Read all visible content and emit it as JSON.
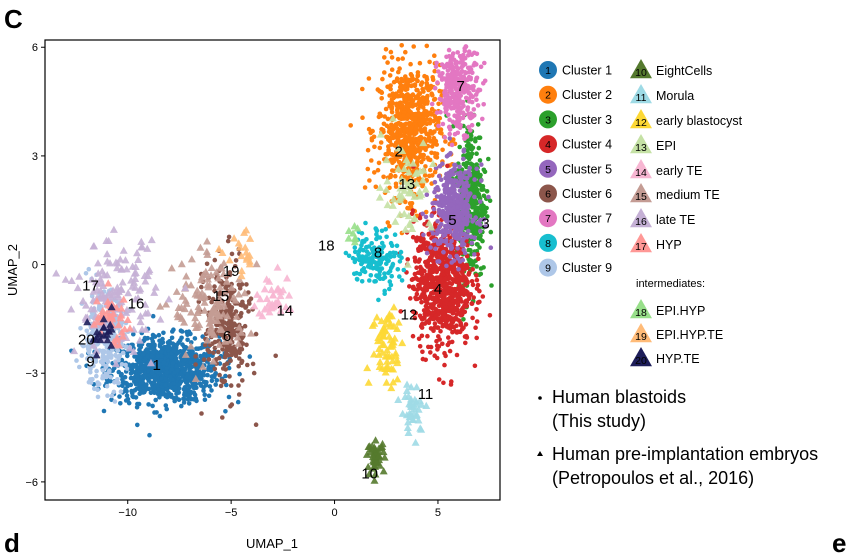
{
  "panel_label": "C",
  "panel_label_next_left": "d",
  "panel_label_next_right": "e",
  "chart_data": {
    "type": "scatter",
    "title": "",
    "xlabel": "UMAP_1",
    "ylabel": "UMAP_2",
    "xlim": [
      -14,
      8
    ],
    "ylim": [
      -6.5,
      6.2
    ],
    "xticks": [
      -10,
      -5,
      0,
      5
    ],
    "yticks": [
      -6,
      -3,
      0,
      3,
      6
    ],
    "xtick_labels": [
      "−10",
      "−5",
      "0",
      "5"
    ],
    "ytick_labels": [
      "−6",
      "−3",
      "0",
      "3",
      "6"
    ],
    "grid": false,
    "legend_position": "right",
    "clusters": [
      {
        "id": "1",
        "name": "Cluster 1",
        "color": "#1f77b4",
        "center": [
          -8.2,
          -2.9
        ],
        "spread": [
          2.6,
          0.9
        ],
        "label_at": [
          -8.6,
          -2.8
        ],
        "n": 900
      },
      {
        "id": "2",
        "name": "Cluster 2",
        "color": "#ff7f0e",
        "center": [
          3.6,
          3.7
        ],
        "spread": [
          1.5,
          1.8
        ],
        "label_at": [
          3.1,
          3.1
        ],
        "n": 700
      },
      {
        "id": "3",
        "name": "Cluster 3",
        "color": "#2ca02c",
        "center": [
          6.6,
          1.8
        ],
        "spread": [
          0.7,
          2.2
        ],
        "label_at": [
          7.3,
          1.1
        ],
        "n": 380
      },
      {
        "id": "4",
        "name": "Cluster 4",
        "color": "#d62728",
        "center": [
          5.2,
          -0.5
        ],
        "spread": [
          1.4,
          1.8
        ],
        "label_at": [
          5.0,
          -0.7
        ],
        "n": 800
      },
      {
        "id": "5",
        "name": "Cluster 5",
        "color": "#9467bd",
        "center": [
          5.8,
          1.5
        ],
        "spread": [
          1.1,
          1.2
        ],
        "label_at": [
          5.7,
          1.2
        ],
        "n": 420
      },
      {
        "id": "6",
        "name": "Cluster 6",
        "color": "#8c564b",
        "center": [
          -5.2,
          -1.7
        ],
        "spread": [
          1.1,
          1.8
        ],
        "label_at": [
          -5.2,
          -2.0
        ],
        "n": 280
      },
      {
        "id": "7",
        "name": "Cluster 7",
        "color": "#e377c2",
        "center": [
          6.0,
          4.8
        ],
        "spread": [
          1.0,
          1.1
        ],
        "label_at": [
          6.1,
          4.9
        ],
        "n": 300
      },
      {
        "id": "8",
        "name": "Cluster 8",
        "color": "#17becf",
        "center": [
          2.0,
          0.2
        ],
        "spread": [
          1.2,
          0.8
        ],
        "label_at": [
          2.1,
          0.3
        ],
        "n": 160
      },
      {
        "id": "9",
        "name": "Cluster 9",
        "color": "#aec7e8",
        "center": [
          -11.2,
          -2.1
        ],
        "spread": [
          1.1,
          1.3
        ],
        "label_at": [
          -11.8,
          -2.7
        ],
        "n": 280
      }
    ],
    "reference_groups": [
      {
        "id": "10",
        "name": "EightCells",
        "color": "#557a2e",
        "center": [
          2.0,
          -5.3
        ],
        "spread": [
          0.4,
          0.4
        ],
        "label_at": [
          1.7,
          -5.8
        ],
        "n": 45
      },
      {
        "id": "11",
        "name": "Morula",
        "color": "#9edae5",
        "center": [
          3.8,
          -4.0
        ],
        "spread": [
          0.6,
          0.7
        ],
        "label_at": [
          4.4,
          -3.6
        ],
        "n": 40
      },
      {
        "id": "12",
        "name": "early blastocyst",
        "color": "#fdd835",
        "center": [
          2.6,
          -2.2
        ],
        "spread": [
          0.8,
          1.2
        ],
        "label_at": [
          3.6,
          -1.4
        ],
        "n": 70
      },
      {
        "id": "13",
        "name": "EPI",
        "color": "#c5e1a5",
        "center": [
          3.5,
          2.2
        ],
        "spread": [
          1.2,
          1.3
        ],
        "label_at": [
          3.5,
          2.2
        ],
        "n": 60
      },
      {
        "id": "14",
        "name": "early TE",
        "color": "#f7b6d2",
        "center": [
          -2.9,
          -0.9
        ],
        "spread": [
          0.9,
          0.6
        ],
        "label_at": [
          -2.4,
          -1.3
        ],
        "n": 40
      },
      {
        "id": "15",
        "name": "medium TE",
        "color": "#c49c94",
        "center": [
          -6.0,
          -1.2
        ],
        "spread": [
          1.8,
          1.4
        ],
        "label_at": [
          -5.5,
          -0.9
        ],
        "n": 120
      },
      {
        "id": "16",
        "name": "late TE",
        "color": "#c5b0d5",
        "center": [
          -10.6,
          -0.9
        ],
        "spread": [
          1.9,
          1.5
        ],
        "label_at": [
          -9.6,
          -1.1
        ],
        "n": 150
      },
      {
        "id": "17",
        "name": "HYP",
        "color": "#ff9896",
        "center": [
          -10.8,
          -1.5
        ],
        "spread": [
          1.0,
          0.7
        ],
        "label_at": [
          -11.8,
          -0.6
        ],
        "n": 40
      },
      {
        "id": "18",
        "name": "EPI.HYP",
        "color": "#98df8a",
        "center": [
          0.9,
          0.8
        ],
        "spread": [
          0.4,
          0.3
        ],
        "label_at": [
          -0.4,
          0.5
        ],
        "n": 8
      },
      {
        "id": "19",
        "name": "EPI.HYP.TE",
        "color": "#ffbb78",
        "center": [
          -4.4,
          0.2
        ],
        "spread": [
          0.8,
          0.6
        ],
        "label_at": [
          -5.0,
          -0.2
        ],
        "n": 20
      },
      {
        "id": "20",
        "name": "HYP.TE",
        "color": "#1e1e5a",
        "center": [
          -11.2,
          -2.0
        ],
        "spread": [
          0.7,
          0.5
        ],
        "label_at": [
          -12.0,
          -2.1
        ],
        "n": 20
      }
    ],
    "intermediates_heading": "intermediates:",
    "marker_legend": [
      {
        "marker": "circle",
        "line1": "Human blastoids",
        "line2": "(This study)"
      },
      {
        "marker": "triangle",
        "line1": "Human pre-implantation embryos",
        "line2": "(Petropoulos et al., 2016)"
      }
    ]
  }
}
